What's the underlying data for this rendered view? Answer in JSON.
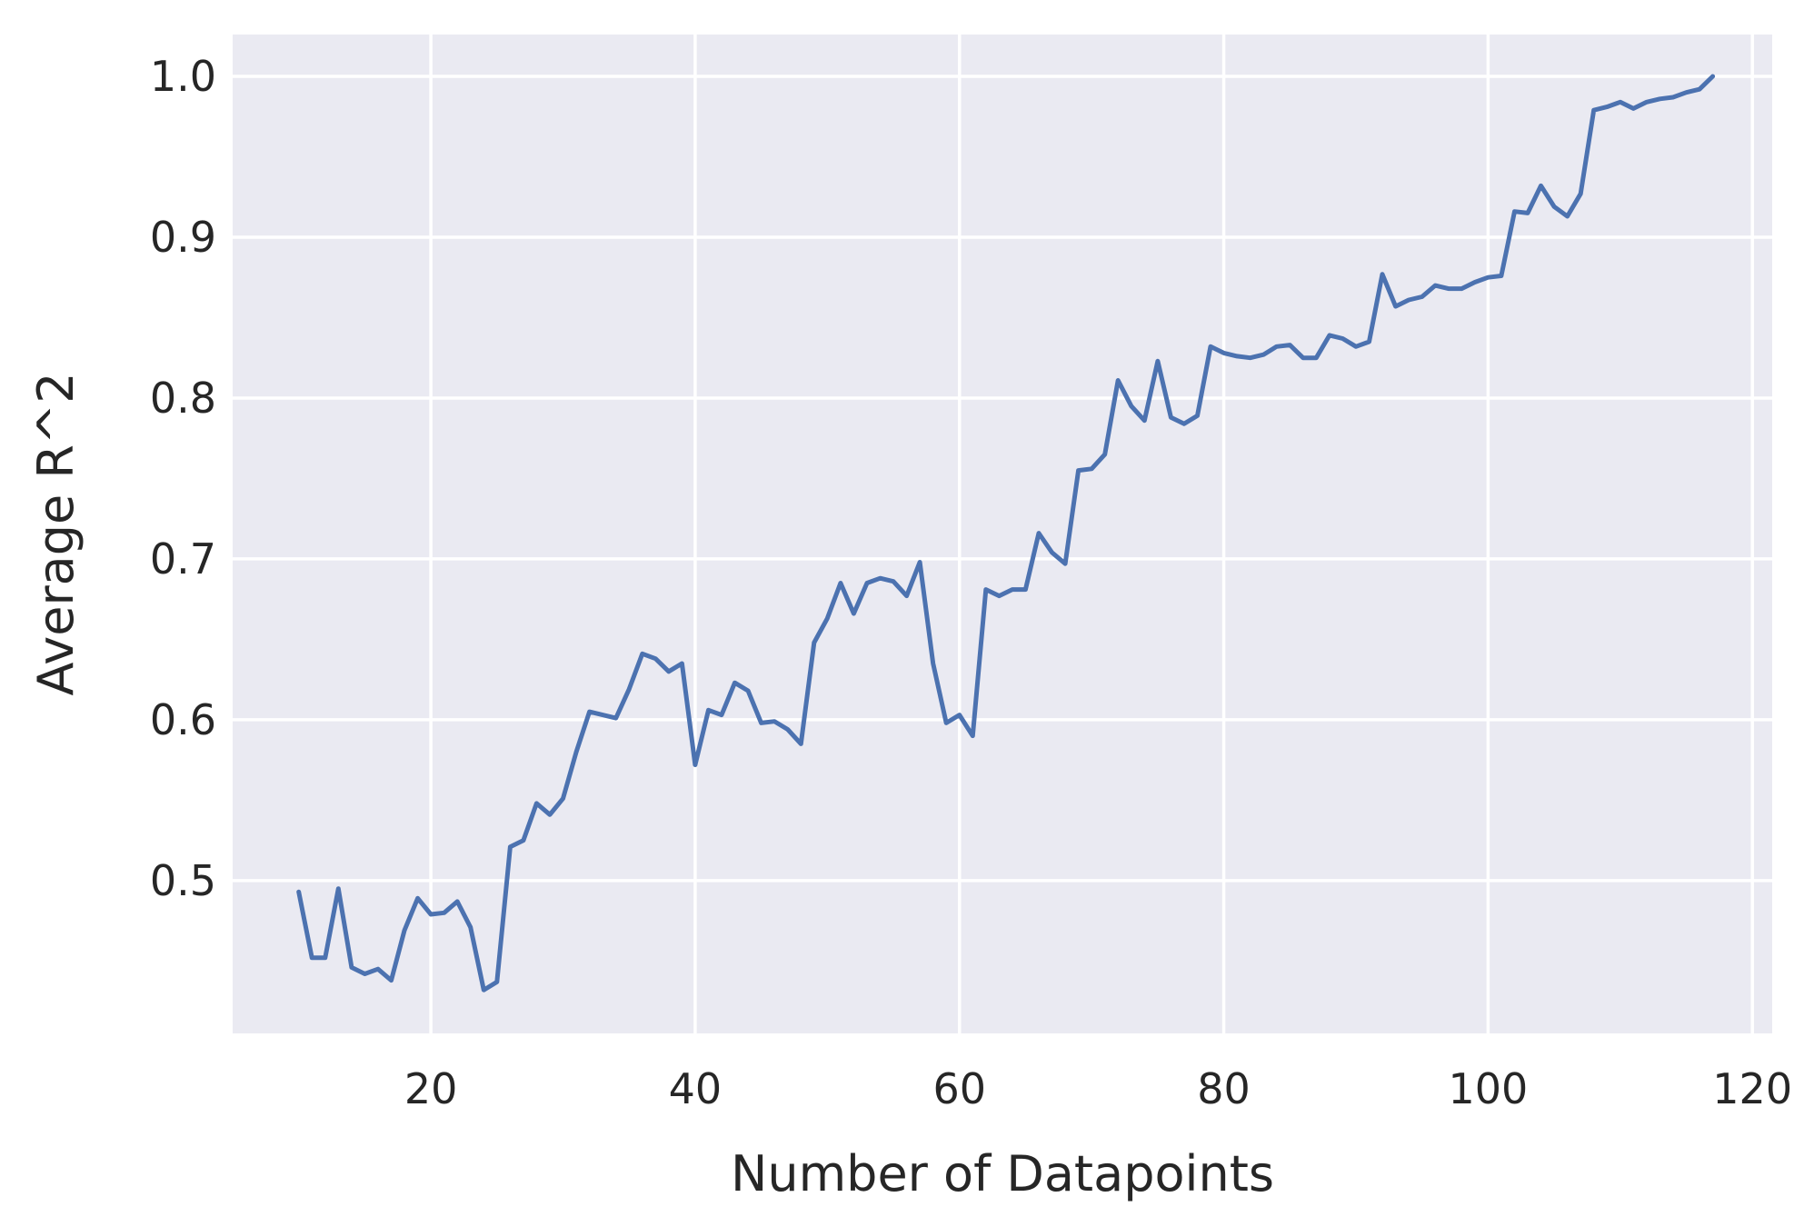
{
  "chart_data": {
    "type": "line",
    "xlabel": "Number of Datapoints",
    "ylabel": "Average R^2",
    "xlim": [
      5,
      121.5
    ],
    "ylim": [
      0.405,
      1.026
    ],
    "xticks": [
      20,
      40,
      60,
      80,
      100,
      120
    ],
    "yticks": [
      0.5,
      0.6,
      0.7,
      0.8,
      0.9,
      1.0
    ],
    "xtick_labels": [
      "20",
      "40",
      "60",
      "80",
      "100",
      "120"
    ],
    "ytick_labels": [
      "0.5",
      "0.6",
      "0.7",
      "0.8",
      "0.9",
      "1.0"
    ],
    "grid": true,
    "background_color": "#EAEAF2",
    "series": [
      {
        "color": "#4C72B0",
        "x": [
          10,
          11,
          12,
          13,
          14,
          15,
          16,
          17,
          18,
          19,
          20,
          21,
          22,
          23,
          24,
          25,
          26,
          27,
          28,
          29,
          30,
          31,
          32,
          33,
          34,
          35,
          36,
          37,
          38,
          39,
          40,
          41,
          42,
          43,
          44,
          45,
          46,
          47,
          48,
          49,
          50,
          51,
          52,
          53,
          54,
          55,
          56,
          57,
          58,
          59,
          60,
          61,
          62,
          63,
          64,
          65,
          66,
          67,
          68,
          69,
          70,
          71,
          72,
          73,
          74,
          75,
          76,
          77,
          78,
          79,
          80,
          81,
          82,
          83,
          84,
          85,
          86,
          87,
          88,
          89,
          90,
          91,
          92,
          93,
          94,
          95,
          96,
          97,
          98,
          99,
          100,
          101,
          102,
          103,
          104,
          105,
          106,
          107,
          108,
          109,
          110,
          111,
          112,
          113,
          114,
          115,
          116,
          117
        ],
        "y": [
          0.493,
          0.452,
          0.452,
          0.495,
          0.446,
          0.442,
          0.445,
          0.438,
          0.469,
          0.489,
          0.479,
          0.48,
          0.487,
          0.471,
          0.432,
          0.437,
          0.521,
          0.525,
          0.548,
          0.541,
          0.551,
          0.58,
          0.605,
          0.603,
          0.601,
          0.619,
          0.641,
          0.638,
          0.63,
          0.635,
          0.572,
          0.606,
          0.603,
          0.623,
          0.618,
          0.598,
          0.599,
          0.594,
          0.585,
          0.648,
          0.663,
          0.685,
          0.666,
          0.685,
          0.688,
          0.686,
          0.677,
          0.698,
          0.635,
          0.598,
          0.603,
          0.59,
          0.681,
          0.677,
          0.681,
          0.681,
          0.716,
          0.704,
          0.697,
          0.755,
          0.756,
          0.765,
          0.811,
          0.795,
          0.786,
          0.823,
          0.788,
          0.784,
          0.789,
          0.832,
          0.828,
          0.826,
          0.825,
          0.827,
          0.832,
          0.833,
          0.825,
          0.825,
          0.839,
          0.837,
          0.832,
          0.835,
          0.877,
          0.857,
          0.861,
          0.863,
          0.87,
          0.868,
          0.868,
          0.872,
          0.875,
          0.876,
          0.916,
          0.915,
          0.932,
          0.919,
          0.913,
          0.927,
          0.979,
          0.981,
          0.984,
          0.98,
          0.984,
          0.986,
          0.987,
          0.99,
          0.992,
          1.0
        ]
      }
    ]
  }
}
